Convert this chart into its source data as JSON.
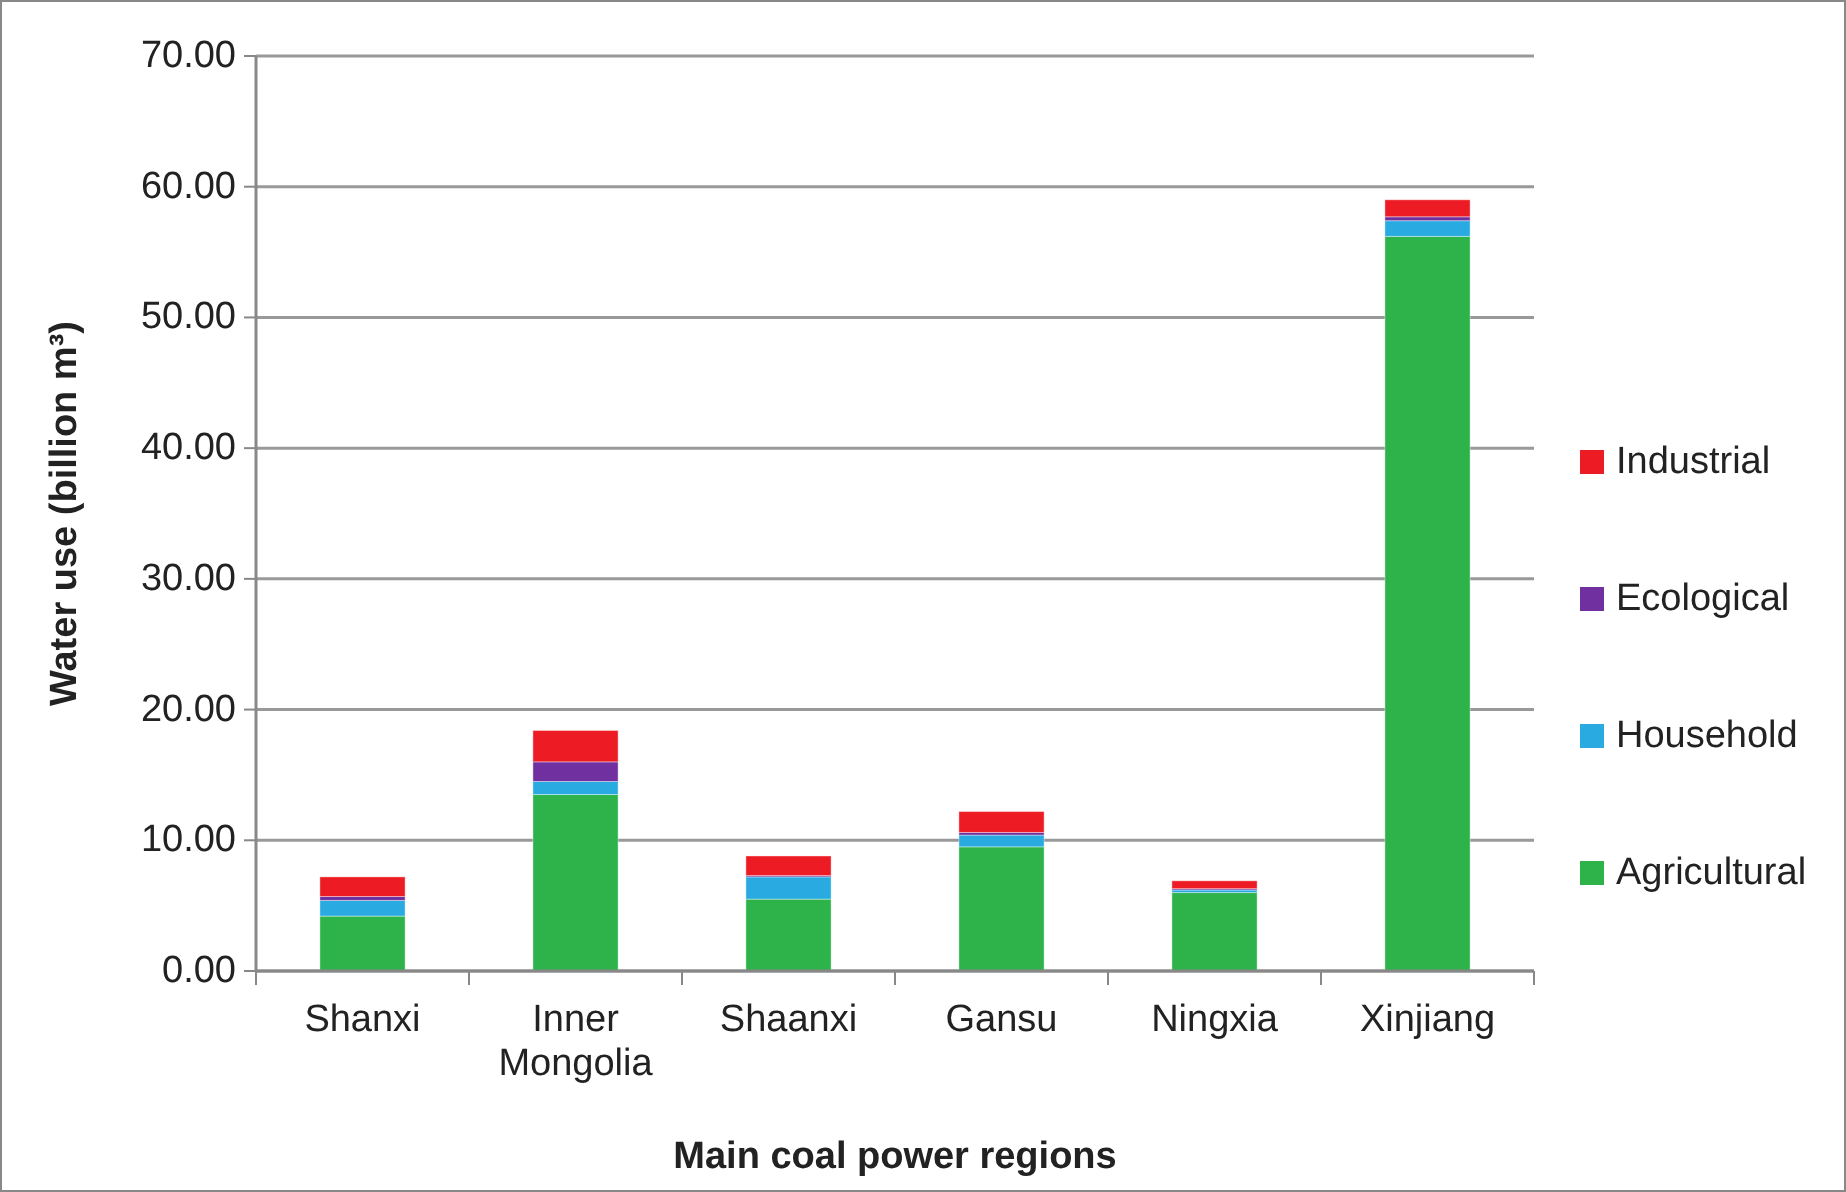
{
  "chart_data": {
    "type": "bar",
    "stacked": true,
    "xlabel": "Main coal power regions",
    "ylabel": "Water use (billion m³)",
    "categories": [
      "Shanxi",
      "Inner Mongolia",
      "Shaanxi",
      "Gansu",
      "Ningxia",
      "Xinjiang"
    ],
    "series": [
      {
        "name": "Agricultural",
        "color": "#2db34a",
        "values": [
          4.2,
          13.5,
          5.5,
          9.5,
          6.0,
          56.2
        ]
      },
      {
        "name": "Household",
        "color": "#29abe2",
        "values": [
          1.2,
          1.0,
          1.7,
          0.9,
          0.2,
          1.2
        ]
      },
      {
        "name": "Ecological",
        "color": "#7030a0",
        "values": [
          0.3,
          1.5,
          0.1,
          0.2,
          0.1,
          0.3
        ]
      },
      {
        "name": "Industrial",
        "color": "#ed1c24",
        "values": [
          1.5,
          2.4,
          1.5,
          1.6,
          0.6,
          1.3
        ]
      }
    ],
    "ylim": [
      0,
      70
    ],
    "yticks": [
      {
        "value": 0,
        "label": "0.00"
      },
      {
        "value": 10,
        "label": "10.00"
      },
      {
        "value": 20,
        "label": "20.00"
      },
      {
        "value": 30,
        "label": "30.00"
      },
      {
        "value": 40,
        "label": "40.00"
      },
      {
        "value": 50,
        "label": "50.00"
      },
      {
        "value": 60,
        "label": "60.00"
      },
      {
        "value": 70,
        "label": "70.00"
      }
    ],
    "grid": "y",
    "legend": "right"
  }
}
